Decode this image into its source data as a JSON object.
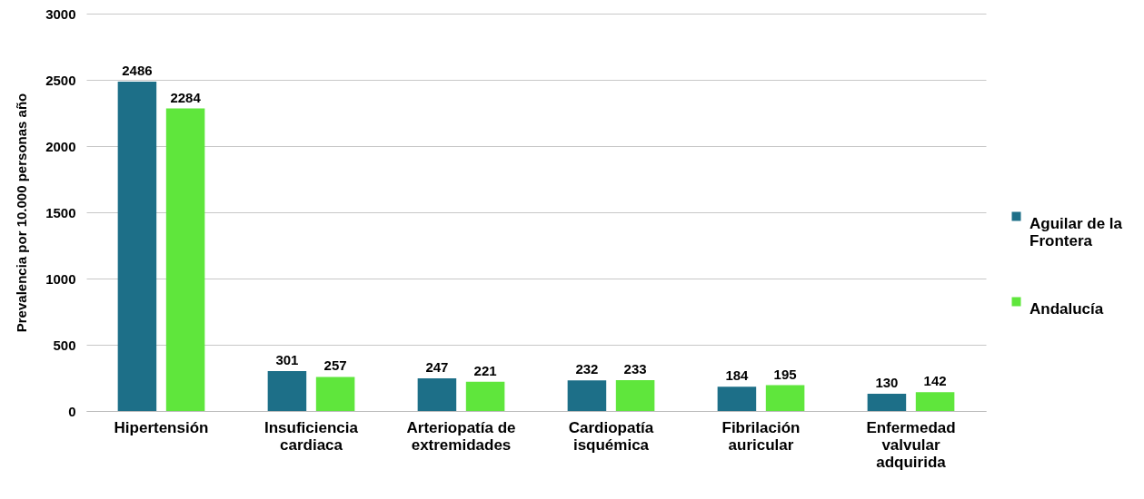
{
  "chart_data": {
    "type": "bar",
    "ylabel": "Prevalencia por 10.000 personas año",
    "categories": [
      "Hipertensión",
      "Insuficiencia cardiaca",
      "Arteriopatía de extremidades",
      "Cardiopatía isquémica",
      "Fibrilación auricular",
      "Enfermedad valvular adquirida"
    ],
    "series": [
      {
        "name": "Aguilar de la Frontera",
        "color": "#1d6f88",
        "values": [
          2486,
          301,
          247,
          232,
          184,
          130
        ]
      },
      {
        "name": "Andalucía",
        "color": "#5fe63c",
        "values": [
          2284,
          257,
          221,
          233,
          195,
          142
        ]
      }
    ],
    "ylim": [
      0,
      3000
    ],
    "yticks": [
      0,
      500,
      1000,
      1500,
      2000,
      2500,
      3000
    ],
    "grid": "y",
    "legend": "right",
    "data_labels": true
  }
}
